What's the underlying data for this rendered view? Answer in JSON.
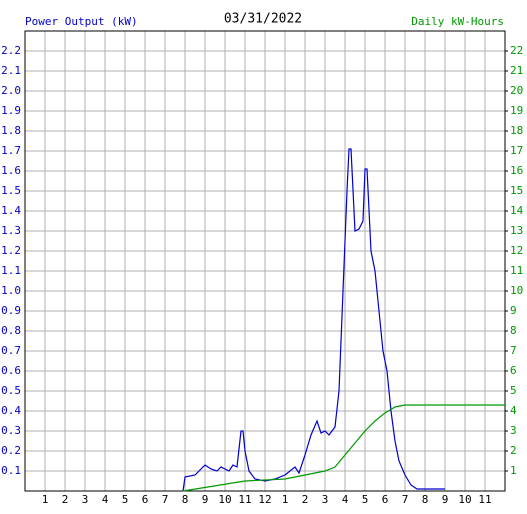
{
  "chart_data": {
    "type": "line",
    "title": "03/31/2022",
    "xlim": [
      0,
      24
    ],
    "xticks": [
      1,
      2,
      3,
      4,
      5,
      6,
      7,
      8,
      9,
      10,
      11,
      12,
      {
        "value": 13,
        "label": "1"
      },
      {
        "value": 14,
        "label": "2"
      },
      {
        "value": 15,
        "label": "3"
      },
      {
        "value": 16,
        "label": "4"
      },
      {
        "value": 17,
        "label": "5"
      },
      {
        "value": 18,
        "label": "6"
      },
      {
        "value": 19,
        "label": "7"
      },
      {
        "value": 20,
        "label": "8"
      },
      {
        "value": 21,
        "label": "9"
      },
      {
        "value": 22,
        "label": "10"
      },
      {
        "value": 23,
        "label": "11"
      }
    ],
    "ylim": [
      0,
      2.3
    ],
    "yticks": [
      0.1,
      0.2,
      0.3,
      0.4,
      0.5,
      0.6,
      0.7,
      0.8,
      0.9,
      {
        "value": 1,
        "label": "1.0"
      },
      1.1,
      1.2,
      1.3,
      1.4,
      1.5,
      1.6,
      1.7,
      1.8,
      1.9,
      {
        "value": 2,
        "label": "2.0"
      },
      2.1,
      2.2
    ],
    "y2lim": [
      0,
      23
    ],
    "y2ticks": [
      1,
      2,
      3,
      4,
      5,
      6,
      7,
      8,
      9,
      10,
      11,
      12,
      13,
      14,
      15,
      16,
      17,
      18,
      19,
      20,
      21,
      22
    ],
    "grid": true,
    "series": [
      {
        "name": "Power Output (kW)",
        "color": "#0000cc",
        "x": [
          7.9,
          8.0,
          8.5,
          8.8,
          9.0,
          9.3,
          9.6,
          9.8,
          10.0,
          10.2,
          10.4,
          10.6,
          10.8,
          10.9,
          11.0,
          11.2,
          11.5,
          12.0,
          12.5,
          13.0,
          13.5,
          13.7,
          14.0,
          14.3,
          14.6,
          14.8,
          15.0,
          15.2,
          15.5,
          15.7,
          15.9,
          16.1,
          16.2,
          16.3,
          16.5,
          16.7,
          16.9,
          17.0,
          17.1,
          17.3,
          17.5,
          17.7,
          17.9,
          18.1,
          18.3,
          18.5,
          18.7,
          19.0,
          19.3,
          19.6,
          20.0,
          20.4,
          21.0
        ],
        "values": [
          0,
          0.07,
          0.08,
          0.11,
          0.13,
          0.11,
          0.1,
          0.12,
          0.11,
          0.1,
          0.13,
          0.12,
          0.3,
          0.3,
          0.2,
          0.1,
          0.06,
          0.05,
          0.06,
          0.08,
          0.12,
          0.09,
          0.18,
          0.28,
          0.35,
          0.29,
          0.3,
          0.28,
          0.32,
          0.5,
          1.0,
          1.5,
          1.71,
          1.71,
          1.3,
          1.31,
          1.35,
          1.61,
          1.61,
          1.2,
          1.1,
          0.9,
          0.7,
          0.6,
          0.4,
          0.25,
          0.15,
          0.08,
          0.03,
          0.01,
          0.01,
          0.01,
          0.01
        ]
      },
      {
        "name": "Daily kW-Hours",
        "color": "#009900",
        "axis": "y2",
        "x": [
          7.9,
          11.0,
          13.0,
          14.0,
          15.0,
          15.5,
          16.0,
          16.5,
          17.0,
          17.5,
          18.0,
          18.5,
          19.0,
          24.0
        ],
        "values": [
          0,
          0.5,
          0.6,
          0.8,
          1.0,
          1.2,
          1.8,
          2.4,
          3.0,
          3.5,
          3.9,
          4.2,
          4.3,
          4.3
        ]
      }
    ]
  }
}
